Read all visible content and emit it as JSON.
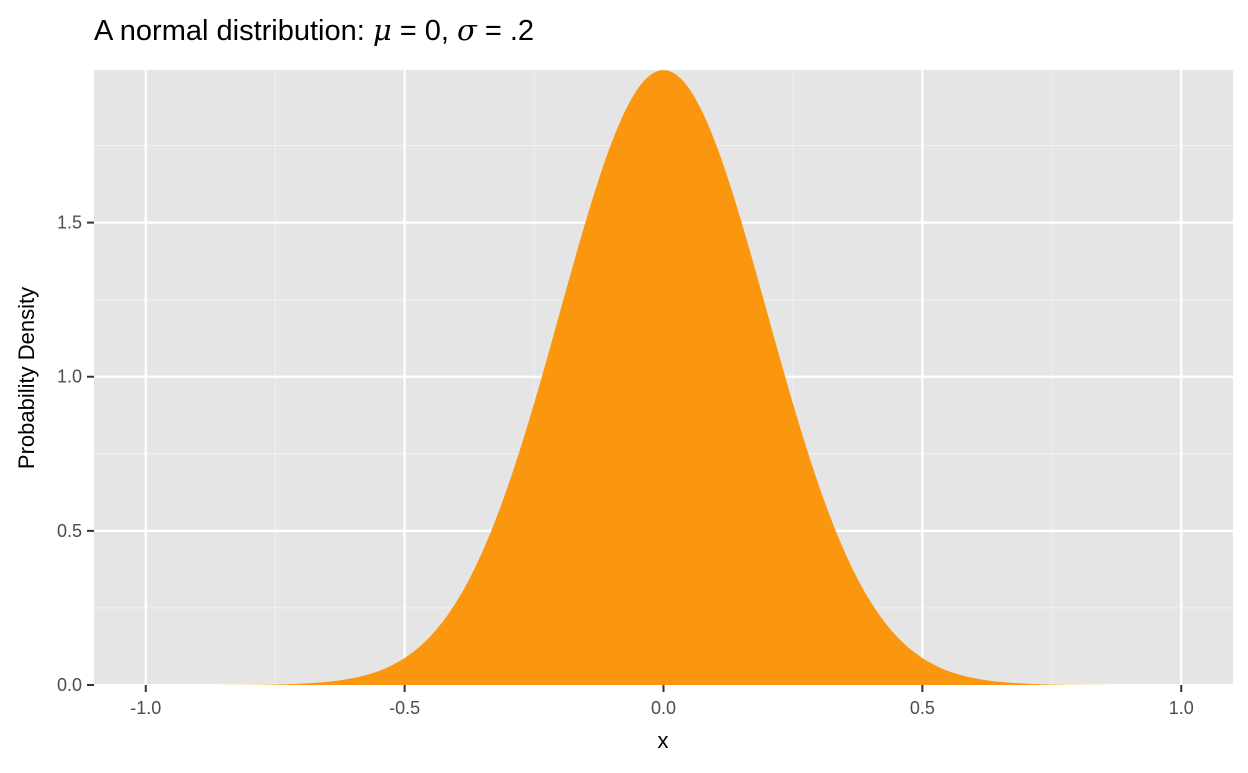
{
  "chart_data": {
    "type": "area",
    "title_prefix": "A normal distribution: ",
    "title_mu_symbol": "μ",
    "title_mu_part": " = 0, ",
    "title_sigma_symbol": "σ",
    "title_sigma_part": " = .2",
    "xlabel": "x",
    "ylabel": "Probability Density",
    "function": "normal density",
    "mu": 0,
    "sigma": 0.2,
    "x_range": [
      -1,
      1
    ],
    "xlim": [
      -1.1,
      1.1
    ],
    "ylim": [
      0,
      1.995
    ],
    "x_ticks": [
      -1.0,
      -0.5,
      0.0,
      0.5,
      1.0
    ],
    "x_tick_labels": [
      "-1.0",
      "-0.5",
      "0.0",
      "0.5",
      "1.0"
    ],
    "y_ticks": [
      0.0,
      0.5,
      1.0,
      1.5
    ],
    "y_tick_labels": [
      "0.0",
      "0.5",
      "1.0",
      "1.5"
    ],
    "grid": true,
    "fill_color": "#FB960F",
    "panel_color": "#E5E5E5"
  }
}
